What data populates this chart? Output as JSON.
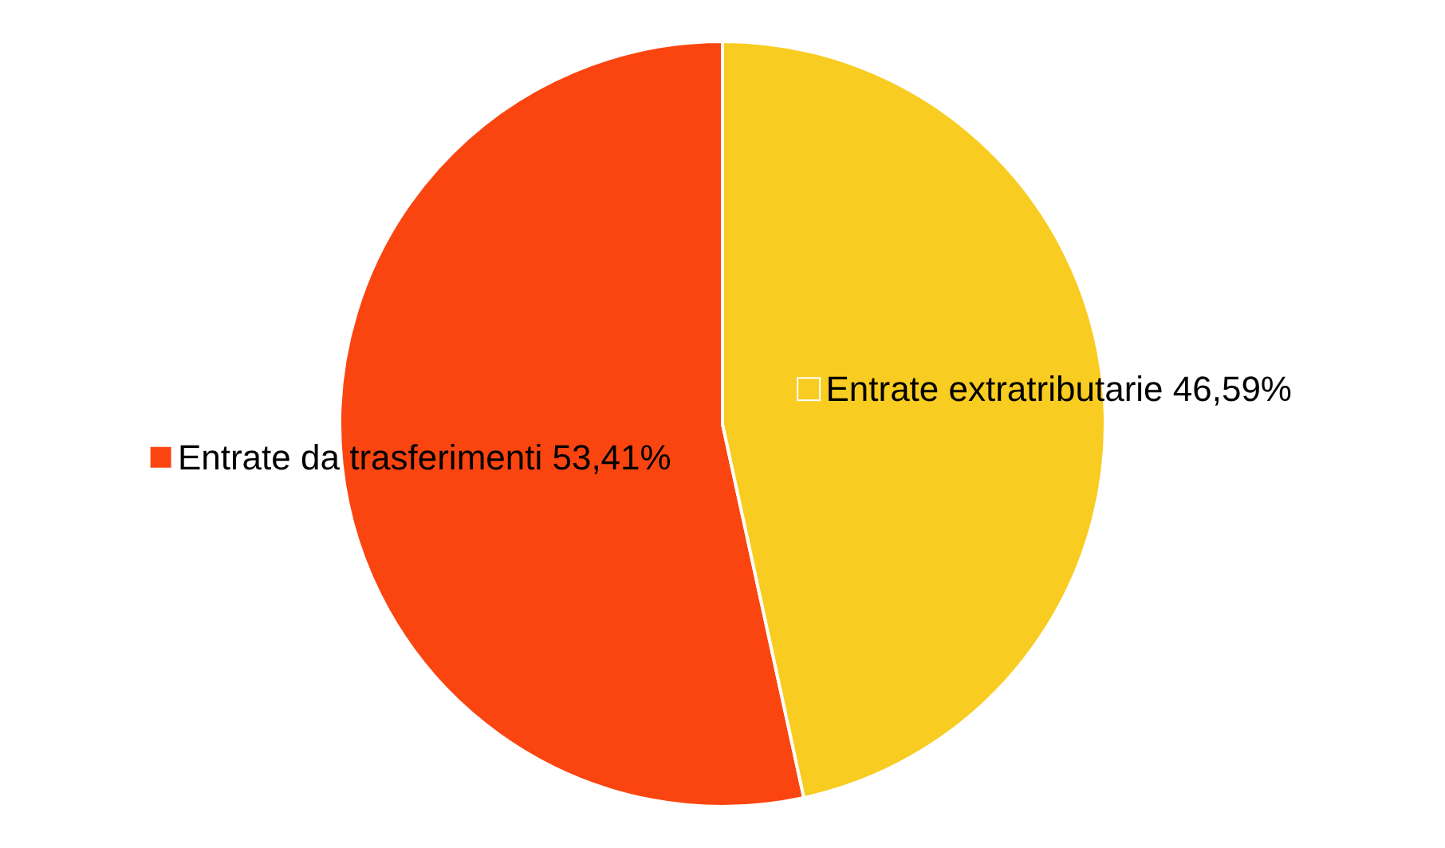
{
  "chart_data": {
    "type": "pie",
    "categories": [
      "Entrate da trasferimenti",
      "Entrate extratributarie"
    ],
    "values": [
      53.41,
      46.59
    ],
    "colors": [
      "#fb4510",
      "#f8cc21"
    ],
    "value_labels": [
      "53,41%",
      "46,59%"
    ],
    "legend": "left"
  }
}
